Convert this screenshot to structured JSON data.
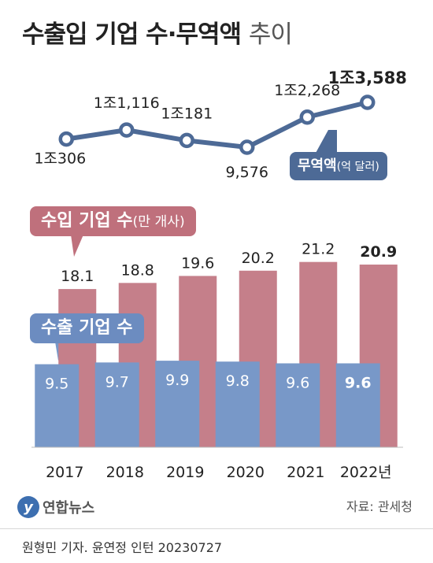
{
  "title": {
    "main": "수출입 기업 수·무역액",
    "sub": "추이"
  },
  "bubbles": {
    "trade": {
      "label": "무역액",
      "unit": "(억 달러)"
    },
    "import": {
      "label": "수입 기업 수",
      "unit": "(만 개사)"
    },
    "export": {
      "label": "수출 기업 수"
    }
  },
  "chart_data": [
    {
      "type": "line",
      "name": "무역액",
      "unit": "억 달러",
      "x": [
        "2017",
        "2018",
        "2019",
        "2020",
        "2021",
        "2022"
      ],
      "values": [
        10306,
        11116,
        10181,
        9576,
        12268,
        13588
      ],
      "data_labels": [
        "1조306",
        "1조1,116",
        "1조181",
        "9,576",
        "1조2,268",
        "1조3,588"
      ],
      "color": "#4d6a96"
    },
    {
      "type": "bar",
      "categories": [
        "2017",
        "2018",
        "2019",
        "2020",
        "2021",
        "2022"
      ],
      "tick_labels": [
        "2017",
        "2018",
        "2019",
        "2020",
        "2021",
        "2022년"
      ],
      "series": [
        {
          "name": "수입 기업 수",
          "unit": "만 개사",
          "values": [
            18.1,
            18.8,
            19.6,
            20.2,
            21.2,
            20.9
          ],
          "labels": [
            "18.1",
            "18.8",
            "19.6",
            "20.2",
            "21.2",
            "20.9"
          ],
          "color": "#c57f8a"
        },
        {
          "name": "수출 기업 수",
          "unit": "만 개사",
          "values": [
            9.5,
            9.7,
            9.9,
            9.8,
            9.6,
            9.6
          ],
          "labels": [
            "9.5",
            "9.7",
            "9.9",
            "9.8",
            "9.6",
            "9.6"
          ],
          "color": "#7898c8"
        }
      ],
      "highlight_last": true
    }
  ],
  "logo": {
    "text": "연합뉴스"
  },
  "source": "자료: 관세청",
  "credit": "원형민 기자. 윤연정 인턴  20230727"
}
